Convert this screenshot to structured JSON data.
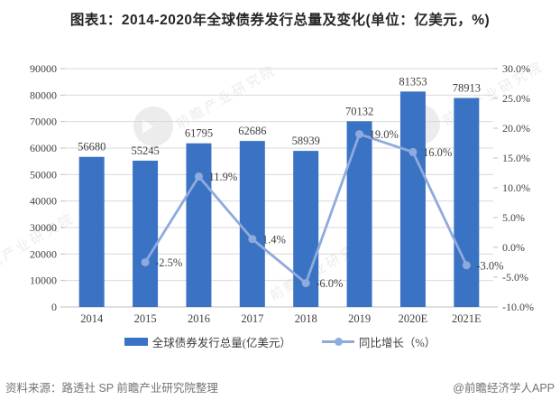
{
  "title": "图表1：2014-2020年全球债券发行总量及变化(单位：亿美元，%)",
  "chart_data": {
    "type": "bar",
    "subtype": "bar+line dual axis",
    "categories": [
      "2014",
      "2015",
      "2016",
      "2017",
      "2018",
      "2019",
      "2020E",
      "2021E"
    ],
    "series": [
      {
        "name": "全球债券发行总量(亿美元）",
        "type": "bar",
        "axis": "left",
        "values": [
          56680,
          55245,
          61795,
          62686,
          58939,
          70132,
          81353,
          78913
        ],
        "labels": [
          "56680",
          "55245",
          "61795",
          "62686",
          "58939",
          "70132",
          "81353",
          "78913"
        ]
      },
      {
        "name": "同比增长（%）",
        "type": "line",
        "axis": "right",
        "values": [
          null,
          -2.5,
          11.9,
          1.4,
          -6.0,
          19.0,
          16.0,
          -3.0
        ],
        "labels": [
          null,
          "-2.5%",
          "11.9%",
          "1.4%",
          "-6.0%",
          "19.0%",
          "16.0%",
          "-3.0%"
        ]
      }
    ],
    "left_axis": {
      "min": 0,
      "max": 90000,
      "step": 10000,
      "ticks": [
        "0",
        "10000",
        "20000",
        "30000",
        "40000",
        "50000",
        "60000",
        "70000",
        "80000",
        "90000"
      ]
    },
    "right_axis": {
      "min": -10,
      "max": 30,
      "step": 5,
      "ticks": [
        "-10.0%",
        "-5.0%",
        "0.0%",
        "5.0%",
        "10.0%",
        "15.0%",
        "20.0%",
        "25.0%",
        "30.0%"
      ]
    },
    "grid": true,
    "legend_position": "bottom"
  },
  "footer": {
    "source": "资料来源：路透社 SP 前瞻产业研究院整理",
    "brand": "@前瞻经济学人APP"
  },
  "watermark": {
    "text": "前瞻产业研究院"
  },
  "colors": {
    "bar": "#3A73C4",
    "line": "#8FAADC",
    "grid": "#D9D9D9",
    "axis": "#BFBFBF",
    "text": "#404040",
    "muted": "#737373",
    "title": "#262626"
  }
}
